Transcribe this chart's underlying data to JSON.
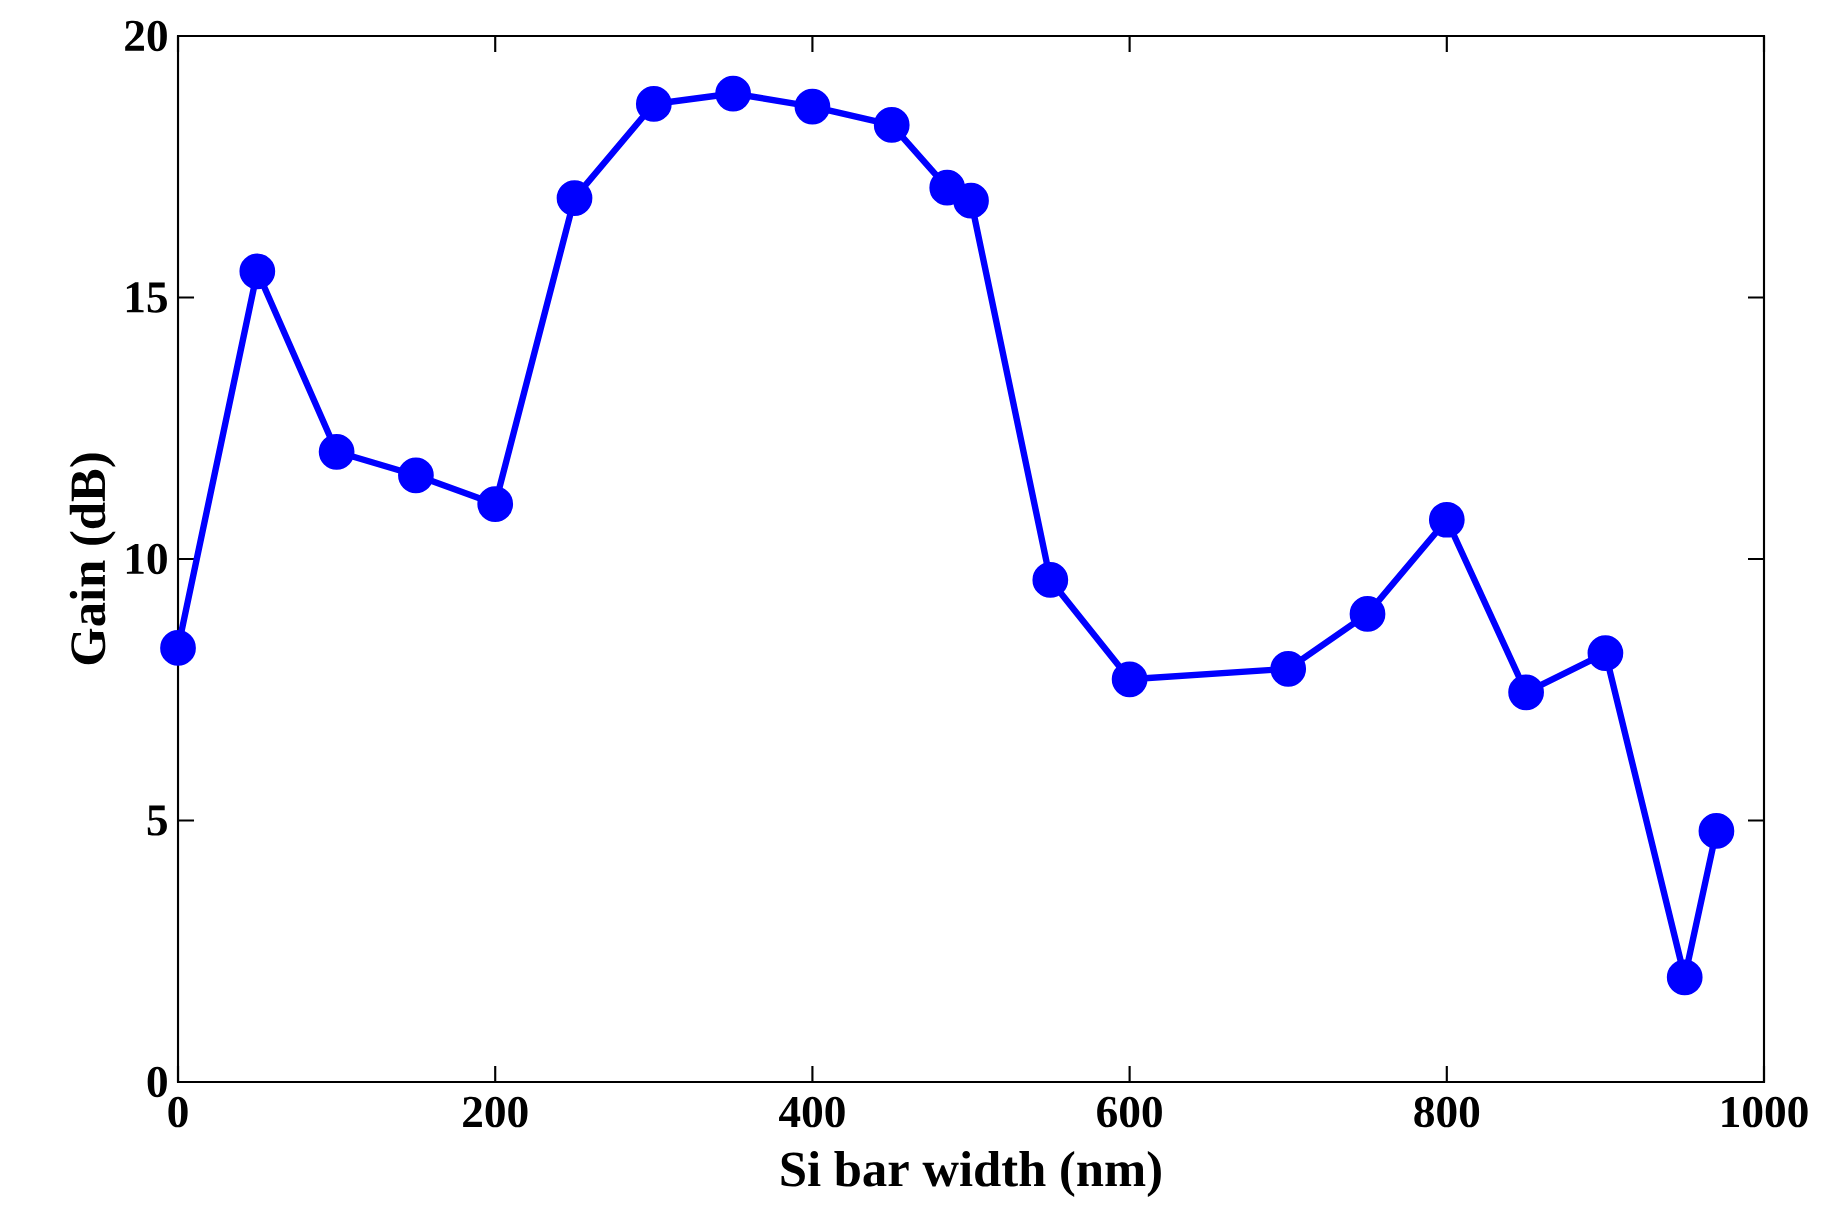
{
  "chart_data": {
    "type": "line",
    "xlabel": "Si bar width (nm)",
    "ylabel": "Gain (dB)",
    "x": [
      0,
      50,
      100,
      150,
      200,
      250,
      300,
      350,
      400,
      450,
      485,
      500,
      550,
      600,
      700,
      750,
      800,
      850,
      900,
      950,
      970
    ],
    "series": [
      {
        "color": "#0000ff",
        "values": [
          8.3,
          15.5,
          12.05,
          11.6,
          11.05,
          16.9,
          18.7,
          18.9,
          18.65,
          18.3,
          17.1,
          16.85,
          9.6,
          7.7,
          7.9,
          8.95,
          10.75,
          7.45,
          8.2,
          2.0,
          4.8
        ]
      }
    ],
    "xlim": [
      0,
      1000
    ],
    "ylim": [
      0,
      20
    ],
    "xticks": [
      0,
      200,
      400,
      600,
      800,
      1000
    ],
    "yticks": [
      0,
      5,
      10,
      15,
      20
    ],
    "marker": "circle",
    "line_style": "solid",
    "grid": false
  }
}
